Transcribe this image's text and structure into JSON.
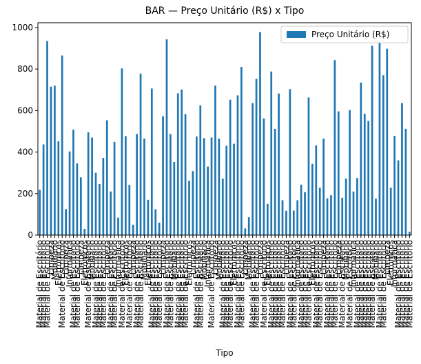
{
  "chart_data": {
    "type": "bar",
    "title": "BAR — Preço Unitário (R$) x Tipo",
    "x_label": "Tipo",
    "categories": [
      "Material de Escritório",
      "Material de Escritório",
      "Material de Escritório",
      "Limpeza",
      "Mobiliário",
      "Eletrônicos",
      "Material de Escritório",
      "Limpeza",
      "Informática",
      "Material de Escritório",
      "Material de Escritório",
      "Limpeza",
      "Eletrônicos",
      "Material de Escritório",
      "Mobiliário",
      "Material de Escritório",
      "Material de Escritório",
      "Material de Escritório",
      "Limpeza",
      "Material de Escritório",
      "Material de Escritório",
      "Informática",
      "Material de Escritório",
      "Eletrônicos",
      "Material de Escritório",
      "Limpeza",
      "Material de Escritório",
      "Material de Escritório",
      "Mobiliário",
      "Eletrônicos",
      "Material de Escritório",
      "Material de Escritório",
      "Material de Escritório",
      "Limpeza",
      "Material de Escritório",
      "Material de Escritório",
      "Mobiliário",
      "Material de Escritório",
      "Material de Escritório",
      "Material de Escritório",
      "Eletrônicos",
      "Limpeza",
      "Material de Escritório",
      "Material de Escritório",
      "Mobiliário",
      "Informática",
      "Material de Escritório",
      "Limpeza",
      "Mobiliário",
      "Material de Escritório",
      "Material de Escritório",
      "Material de Escritório",
      "Eletrônicos",
      "Material de Escritório",
      "Material de Escritório",
      "Limpeza",
      "Mobiliário",
      "Material de Escritório",
      "Material de Escritório",
      "Limpeza",
      "Material de Escritório",
      "Eletrônicos",
      "Material de Escritório",
      "Material de Escritório",
      "Material de Escritório",
      "Material de Escritório",
      "Limpeza",
      "Material de Escritório",
      "Material de Escritório",
      "Informática",
      "Material de Escritório",
      "Material de Escritório",
      "Material de Escritório",
      "Eletrônicos",
      "Material de Escritório",
      "Material de Escritório",
      "Limpeza",
      "Material de Escritório",
      "Material de Escritório",
      "Material de Escritório",
      "Limpeza",
      "Material de Escritório",
      "Mobiliário",
      "Material de Escritório",
      "Informática",
      "Material de Escritório",
      "Material de Escritório",
      "Material de Escritório",
      "Material de Escritório",
      "Material de Escritório",
      "Mobiliário",
      "Material de Escritório",
      "Material de Escritório",
      "Limpeza",
      "Eletrônicos",
      "Informática",
      "Material de Escritório",
      "Material de Escritório",
      "Material de Escritório",
      "Material de Escritório"
    ],
    "series": [
      {
        "name": "Preço Unitário (R$)",
        "color": "#1f77b4",
        "values": [
          218,
          437,
          935,
          715,
          720,
          452,
          865,
          125,
          403,
          508,
          345,
          278,
          30,
          495,
          470,
          300,
          246,
          372,
          553,
          210,
          449,
          84,
          803,
          477,
          242,
          50,
          487,
          778,
          465,
          170,
          706,
          125,
          60,
          573,
          943,
          487,
          352,
          683,
          701,
          583,
          262,
          308,
          475,
          625,
          467,
          330,
          470,
          720,
          465,
          272,
          430,
          652,
          440,
          673,
          810,
          32,
          86,
          636,
          753,
          978,
          562,
          150,
          788,
          512,
          682,
          168,
          117,
          703,
          118,
          168,
          243,
          207,
          663,
          343,
          432,
          228,
          465,
          177,
          192,
          843,
          596,
          180,
          272,
          602,
          210,
          275,
          735,
          585,
          550,
          912,
          175,
          955,
          770,
          898,
          228,
          478,
          360,
          636,
          512,
          16
        ]
      }
    ],
    "ylim": [
      0,
      1023
    ],
    "yticks": [
      0,
      200,
      400,
      600,
      800,
      1000
    ],
    "grid": false,
    "legend": "upper right"
  }
}
